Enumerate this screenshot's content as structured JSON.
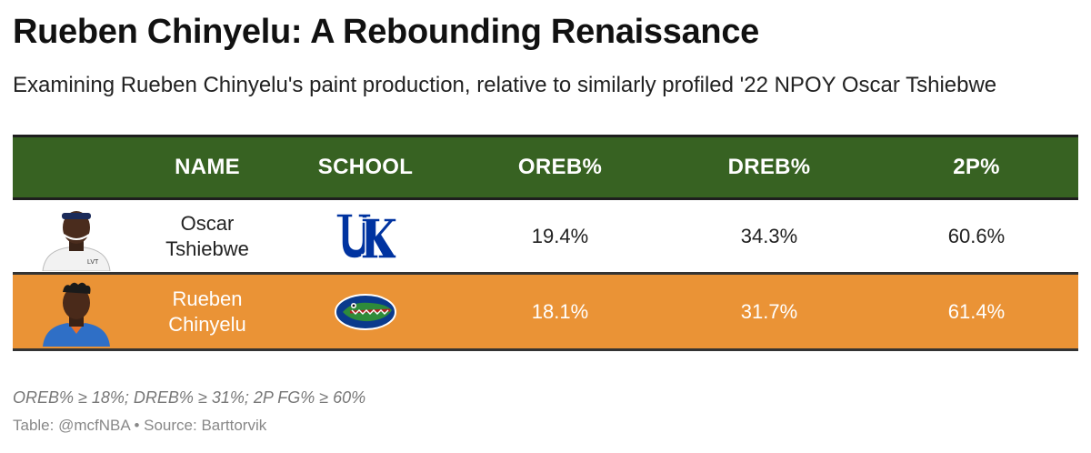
{
  "title": "Rueben Chinyelu: A Rebounding Renaissance",
  "subtitle": "Examining Rueben Chinyelu's paint production, relative to similarly profiled '22 NPOY Oscar Tshiebwe",
  "chart_data": {
    "type": "table",
    "columns": [
      "NAME",
      "SCHOOL",
      "OREB%",
      "DREB%",
      "2P%"
    ],
    "rows": [
      {
        "name_line1": "Oscar",
        "name_line2": "Tshiebwe",
        "school": "Kentucky",
        "school_logo": "uk-logo-icon",
        "oreb": "19.4%",
        "dreb": "34.3%",
        "two_p": "60.6%"
      },
      {
        "name_line1": "Rueben",
        "name_line2": "Chinyelu",
        "school": "Florida",
        "school_logo": "gator-logo-icon",
        "oreb": "18.1%",
        "dreb": "31.7%",
        "two_p": "61.4%"
      }
    ],
    "header_color": "#376222",
    "highlight_row_color": "#ea9336"
  },
  "footnote": "OREB% ≥ 18%; DREB% ≥ 31%; 2P FG% ≥ 60%",
  "source": "Table: @mcfNBA • Source: Barttorvik"
}
